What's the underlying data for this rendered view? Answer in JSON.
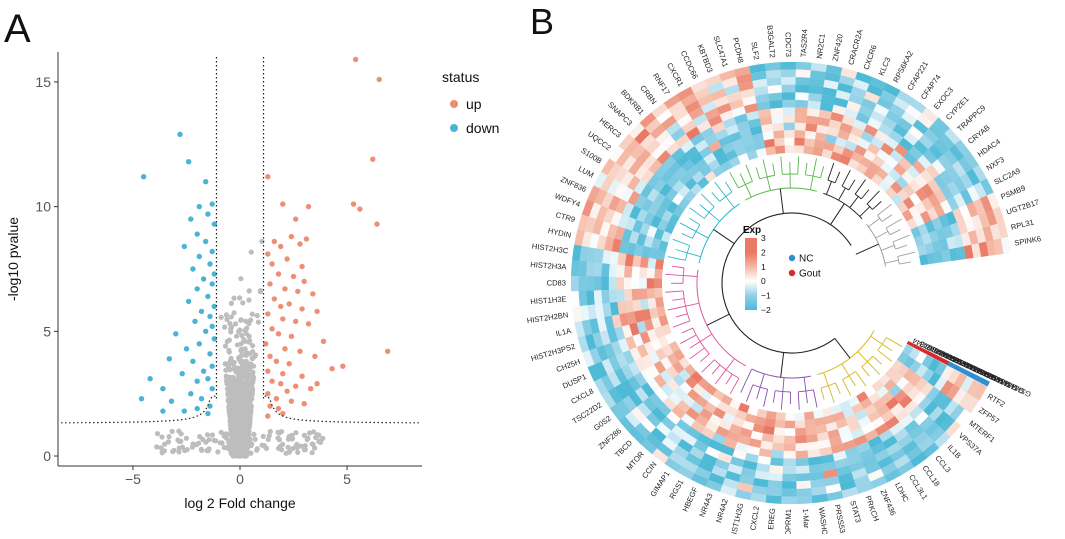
{
  "panel_labels": {
    "a": "A",
    "b": "B"
  },
  "chart_data": [
    {
      "type": "scatter",
      "title": "",
      "xlabel": "log 2 Fold change",
      "ylabel": "-log10 pvalue",
      "xlim": [
        -8.5,
        8.5
      ],
      "ylim": [
        -0.4,
        16.2
      ],
      "x_ticks": [
        -5,
        0,
        5
      ],
      "y_ticks": [
        0,
        5,
        10,
        15
      ],
      "threshold_fc": 1.1,
      "legend": {
        "title": "status",
        "position": "right",
        "items": [
          {
            "label": "up",
            "color": "#ee8f74"
          },
          {
            "label": "down",
            "color": "#4bb3d3"
          }
        ]
      },
      "colors": {
        "up": "#ee8f74",
        "down": "#4bb3d3",
        "ns": "#bdbdbd"
      },
      "series": [
        {
          "name": "up",
          "points": [
            [
              5.4,
              15.9
            ],
            [
              6.5,
              15.1
            ],
            [
              6.2,
              11.9
            ],
            [
              5.3,
              10.1
            ],
            [
              5.6,
              9.9
            ],
            [
              6.4,
              9.3
            ],
            [
              1.3,
              11.2
            ],
            [
              2.0,
              10.1
            ],
            [
              3.2,
              10.0
            ],
            [
              2.6,
              9.5
            ],
            [
              1.6,
              8.6
            ],
            [
              2.4,
              8.8
            ],
            [
              1.9,
              8.4
            ],
            [
              3.1,
              8.7
            ],
            [
              2.8,
              8.5
            ],
            [
              1.3,
              8.1
            ],
            [
              2.2,
              7.9
            ],
            [
              1.5,
              7.7
            ],
            [
              2.9,
              7.6
            ],
            [
              1.8,
              7.3
            ],
            [
              2.5,
              7.2
            ],
            [
              3.0,
              7.0
            ],
            [
              1.4,
              6.9
            ],
            [
              2.1,
              6.7
            ],
            [
              2.7,
              6.6
            ],
            [
              3.4,
              6.5
            ],
            [
              1.6,
              6.3
            ],
            [
              2.3,
              6.1
            ],
            [
              1.9,
              6.0
            ],
            [
              2.9,
              5.9
            ],
            [
              3.6,
              5.8
            ],
            [
              1.3,
              5.7
            ],
            [
              2.0,
              5.5
            ],
            [
              2.6,
              5.4
            ],
            [
              3.2,
              5.3
            ],
            [
              1.5,
              5.1
            ],
            [
              1.8,
              4.9
            ],
            [
              2.4,
              4.8
            ],
            [
              3.9,
              4.6
            ],
            [
              1.2,
              4.5
            ],
            [
              2.1,
              4.3
            ],
            [
              2.8,
              4.2
            ],
            [
              1.4,
              4.0
            ],
            [
              3.5,
              4.0
            ],
            [
              1.7,
              3.8
            ],
            [
              2.3,
              3.7
            ],
            [
              4.3,
              3.5
            ],
            [
              1.3,
              3.4
            ],
            [
              2.0,
              3.3
            ],
            [
              2.9,
              3.2
            ],
            [
              1.5,
              3.0
            ],
            [
              1.9,
              2.9
            ],
            [
              2.6,
              2.8
            ],
            [
              3.3,
              2.7
            ],
            [
              6.9,
              4.2
            ],
            [
              4.8,
              3.6
            ],
            [
              3.6,
              2.9
            ],
            [
              2.2,
              2.6
            ],
            [
              1.3,
              2.5
            ],
            [
              1.7,
              2.3
            ],
            [
              2.4,
              2.2
            ],
            [
              3.0,
              2.1
            ],
            [
              1.4,
              2.0
            ],
            [
              1.8,
              1.9
            ],
            [
              2.0,
              1.7
            ],
            [
              1.3,
              1.6
            ]
          ]
        },
        {
          "name": "down",
          "points": [
            [
              -2.8,
              12.9
            ],
            [
              -2.4,
              11.8
            ],
            [
              -4.5,
              11.2
            ],
            [
              -1.6,
              11.0
            ],
            [
              -1.3,
              10.1
            ],
            [
              -1.9,
              10.0
            ],
            [
              -1.5,
              9.7
            ],
            [
              -2.3,
              9.5
            ],
            [
              -1.2,
              9.3
            ],
            [
              -2.0,
              8.9
            ],
            [
              -1.6,
              8.6
            ],
            [
              -2.6,
              8.4
            ],
            [
              -1.3,
              8.2
            ],
            [
              -1.9,
              8.0
            ],
            [
              -1.4,
              7.7
            ],
            [
              -2.2,
              7.5
            ],
            [
              -1.2,
              7.3
            ],
            [
              -1.7,
              7.1
            ],
            [
              -1.3,
              6.9
            ],
            [
              -2.0,
              6.7
            ],
            [
              -1.5,
              6.4
            ],
            [
              -2.4,
              6.2
            ],
            [
              -1.2,
              6.0
            ],
            [
              -1.8,
              5.8
            ],
            [
              -1.4,
              5.6
            ],
            [
              -2.1,
              5.4
            ],
            [
              -1.3,
              5.2
            ],
            [
              -1.6,
              5.0
            ],
            [
              -3.0,
              4.9
            ],
            [
              -1.2,
              4.7
            ],
            [
              -1.9,
              4.5
            ],
            [
              -2.5,
              4.3
            ],
            [
              -1.4,
              4.1
            ],
            [
              -3.3,
              3.9
            ],
            [
              -2.2,
              3.8
            ],
            [
              -1.3,
              3.6
            ],
            [
              -1.7,
              3.4
            ],
            [
              -2.7,
              3.3
            ],
            [
              -1.5,
              3.1
            ],
            [
              -2.0,
              3.0
            ],
            [
              -4.2,
              3.1
            ],
            [
              -3.6,
              2.7
            ],
            [
              -1.3,
              2.7
            ],
            [
              -2.3,
              2.5
            ],
            [
              -1.8,
              2.3
            ],
            [
              -3.2,
              2.2
            ],
            [
              -4.6,
              2.3
            ],
            [
              -1.4,
              2.0
            ],
            [
              -2.0,
              1.9
            ],
            [
              -2.6,
              1.8
            ],
            [
              -1.5,
              1.7
            ],
            [
              -3.6,
              1.8
            ]
          ]
        }
      ]
    },
    {
      "type": "heatmap",
      "layout": "circular",
      "legend": {
        "title": "Exp",
        "ticks": [
          "3",
          "2",
          "1",
          "0",
          "−1",
          "−2"
        ]
      },
      "group_legend": [
        {
          "label": "NC",
          "color": "#2f8fd0"
        },
        {
          "label": "Gout",
          "color": "#d72a2a"
        }
      ],
      "group_colors": {
        "NC": "#2f8fd0",
        "Gout": "#d72a2a"
      },
      "samples": [
        "GSM4861833",
        "GSM4861834",
        "GSM4861835",
        "GSM4861836",
        "GSM4861837",
        "GSM4861838",
        "GSM4861839",
        "GSM4861840",
        "GSM4861841",
        "GSM4861842",
        "GSM4861843",
        "GSM4861844"
      ],
      "sample_groups": [
        "NC",
        "NC",
        "NC",
        "NC",
        "NC",
        "NC",
        "Gout",
        "Gout",
        "Gout",
        "Gout",
        "Gout",
        "Gout"
      ],
      "genes": [
        "RTF2",
        "ZFP57",
        "MTERF1",
        "VPS37A",
        "IL1B",
        "CCL3",
        "CCL18",
        "CCL3L1",
        "LDHC",
        "ZNF436",
        "PRKCH",
        "STAT3",
        "PRSS53",
        "WASHC2A",
        "1-Mar",
        "OPRM1",
        "EREG",
        "CXCL2",
        "HIST1H3G",
        "NR4A2",
        "NR4A3",
        "HBEGF",
        "RGS1",
        "GIMAP1",
        "CCIN",
        "MTOR",
        "TBCD",
        "ZNF286",
        "G0S2",
        "TSC22D2",
        "CXCL8",
        "DUSP1",
        "CH25H",
        "HIST2H3PS2",
        "IL1A",
        "HIST2H2BN",
        "HIST1H3E",
        "CD83",
        "HIST2H3A",
        "HIST2H3C",
        "HYDIN",
        "CTR9",
        "WDFY4",
        "ZNF836",
        "LUM",
        "S100B",
        "UQCC2",
        "HERC3",
        "SNAPC3",
        "BDKRB1",
        "CRBN",
        "RNF17",
        "CXCR1",
        "CCDC66",
        "KBTBD3",
        "SLC47A1",
        "PCDH8",
        "SLF2",
        "B3GALT2",
        "CDC73",
        "TAS2R4",
        "NR2C1",
        "ZNF420",
        "CRACR2A",
        "CXCR6",
        "KLC3",
        "RPS6KA2",
        "CFAP221",
        "CFAP74",
        "EXOC3",
        "CYP2E1",
        "TRAPPC9",
        "CRYAB",
        "HDAC4",
        "NXF3",
        "SLC2A9",
        "PSMB9",
        "UGT2B17",
        "RPL31",
        "SPINK6"
      ]
    }
  ]
}
